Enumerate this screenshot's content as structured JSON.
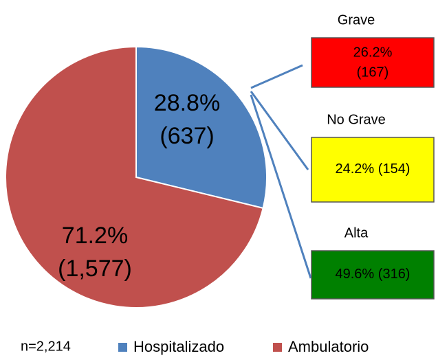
{
  "chart_data": {
    "type": "pie",
    "series": [
      {
        "name": "Hospitalizado",
        "color": "#4f81bd",
        "value": 28.8,
        "value_label": "28.8%",
        "count": 637,
        "count_label": "(637)"
      },
      {
        "name": "Ambulatorio",
        "color": "#c0504d",
        "value": 71.2,
        "value_label": "71.2%",
        "count": 1577,
        "count_label": "(1,577)"
      }
    ],
    "annotation": "n=2,214",
    "breakdown": [
      {
        "name": "Grave",
        "color": "#ff0000",
        "value": 26.2,
        "value_label": "26.2%",
        "count": 167,
        "count_label": "(167)"
      },
      {
        "name": "No Grave",
        "color": "#ffff00",
        "value": 24.2,
        "value_label": "24.2%",
        "count": 154,
        "count_label": "(154)"
      },
      {
        "name": "Alta",
        "color": "#008000",
        "value": 49.6,
        "value_label": "49.6%",
        "count": 316,
        "count_label": "(316)"
      }
    ],
    "legend": "bottom"
  }
}
